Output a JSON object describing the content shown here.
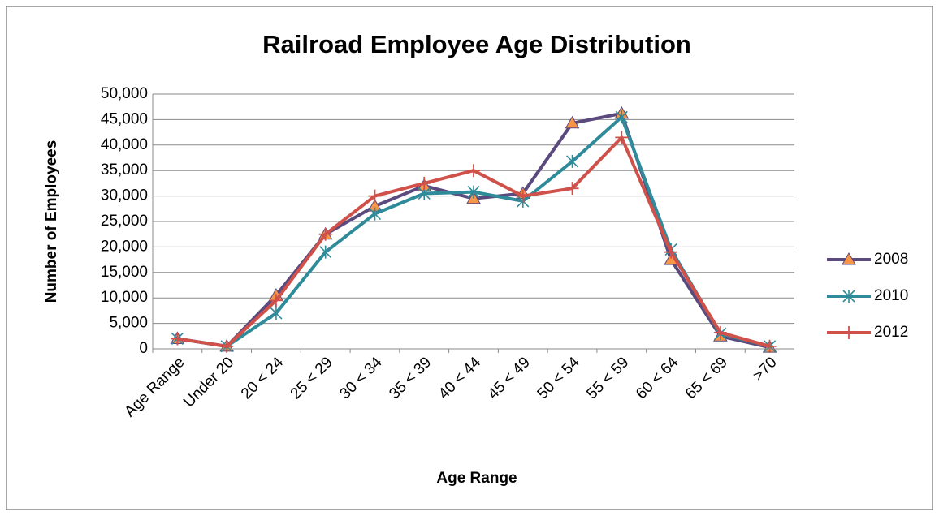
{
  "chart_data": {
    "type": "line",
    "title": "Railroad Employee Age Distribution",
    "x_label": "Age Range",
    "y_label": "Number of Employees",
    "categories": [
      "Age Range",
      "Under 20",
      "20 < 24",
      "25 < 29",
      "30 < 34",
      "35 < 39",
      "40 < 44",
      "45 < 49",
      "50 < 54",
      "55 < 59",
      "60 < 64",
      "65 < 69",
      ">70"
    ],
    "series": [
      {
        "name": "2008",
        "color": "#5b4a7e",
        "marker": "triangle",
        "marker_color": "#f79646",
        "values": [
          2000,
          500,
          10500,
          22500,
          28000,
          32000,
          29500,
          30500,
          44300,
          46200,
          17500,
          2500,
          300
        ]
      },
      {
        "name": "2010",
        "color": "#2f8a99",
        "marker": "star",
        "marker_color": "#2f8a99",
        "values": [
          2000,
          500,
          7000,
          19000,
          26500,
          30500,
          30800,
          29000,
          36800,
          45500,
          19500,
          3000,
          500
        ]
      },
      {
        "name": "2012",
        "color": "#d0504a",
        "marker": "plus",
        "marker_color": "#d0504a",
        "values": [
          2000,
          500,
          9500,
          22500,
          30000,
          32500,
          35000,
          30000,
          31500,
          41500,
          19000,
          3200,
          500
        ]
      }
    ],
    "ylim": [
      0,
      50000
    ],
    "yticks": [
      0,
      {
        "value": 5000,
        "label": "5,000"
      },
      {
        "value": 10000,
        "label": "10,000"
      },
      {
        "value": 15000,
        "label": "15,000"
      },
      {
        "value": 20000,
        "label": "20,000"
      },
      {
        "value": 25000,
        "label": "25,000"
      },
      {
        "value": 30000,
        "label": "30,000"
      },
      {
        "value": 35000,
        "label": "35,000"
      },
      {
        "value": 40000,
        "label": "40,000"
      },
      {
        "value": 45000,
        "label": "45,000"
      },
      {
        "value": 50000,
        "label": "50,000"
      }
    ],
    "grid": true,
    "legend": "right"
  }
}
